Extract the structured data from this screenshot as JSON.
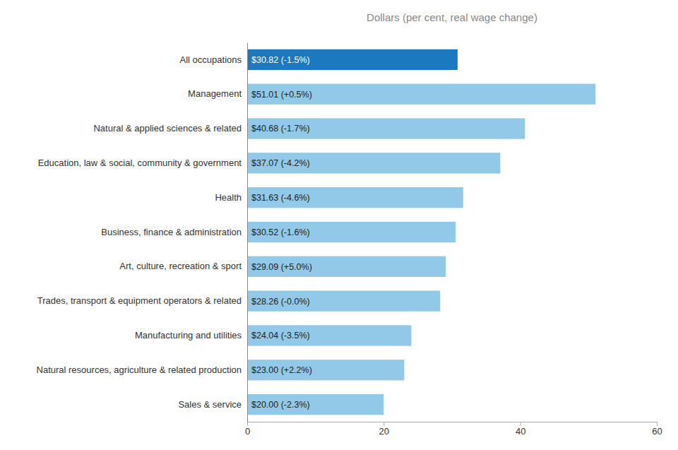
{
  "chart_data": {
    "type": "bar",
    "orientation": "horizontal",
    "title": "Dollars (per cent, real wage change)",
    "categories": [
      "Sales & service",
      "Natural resources, agriculture & related production",
      "Manufacturing and utilities",
      "Trades, transport & equipment operators & related",
      "Art, culture, recreation & sport",
      "Business, finance & administration",
      "Health",
      "Education, law & social, community & government",
      "Natural & applied sciences & related",
      "Management",
      "All occupations"
    ],
    "values": [
      20.0,
      23.0,
      24.04,
      28.26,
      29.09,
      30.52,
      31.63,
      37.07,
      40.68,
      51.01,
      30.82
    ],
    "value_labels": [
      "$20.00 (-2.3%)",
      "$23.00 (+2.2%)",
      "$24.04 (-3.5%)",
      "$28.26 (-0.0%)",
      "$29.09 (+5.0%)",
      "$30.52 (-1.6%)",
      "$31.63 (-4.6%)",
      "$37.07 (-4.2%)",
      "$40.68 (-1.7%)",
      "$51.01 (+0.5%)",
      "$30.82 (-1.5%)"
    ],
    "data_labels": true,
    "colors": [
      "#92C9E8",
      "#92C9E8",
      "#92C9E8",
      "#92C9E8",
      "#92C9E8",
      "#92C9E8",
      "#92C9E8",
      "#92C9E8",
      "#92C9E8",
      "#92C9E8",
      "#1B7ABF"
    ],
    "xlim": [
      0,
      60
    ],
    "xticks": [
      0,
      20,
      40,
      60
    ],
    "grid": false
  }
}
